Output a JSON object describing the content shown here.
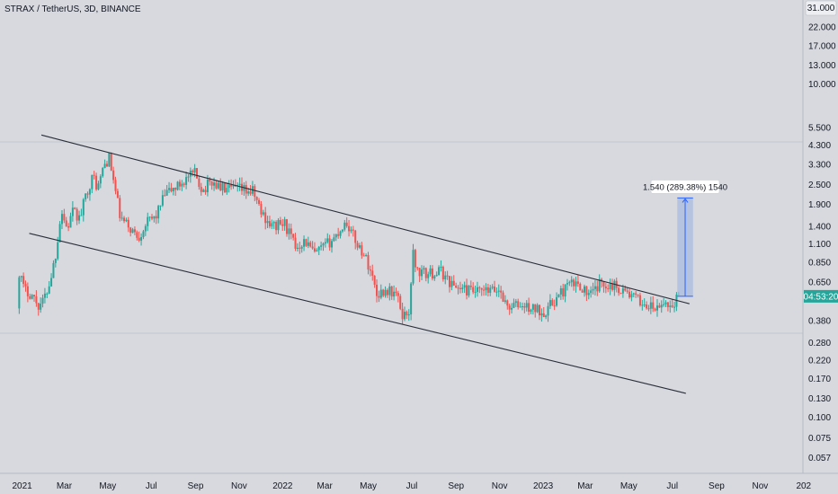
{
  "header": {
    "symbol": "STRAX / TetherUS, 3D, BINANCE",
    "top_right_tick": "31.000"
  },
  "colors": {
    "background": "#d7d9df",
    "up": "#26a69a",
    "down": "#ef5350",
    "channel": "#2a2e39",
    "measure_fill": "#a9b9e0",
    "measure_stroke": "#2962ff",
    "price_tag": "#26a69a"
  },
  "chart_data": {
    "type": "candlestick",
    "title": "STRAX / TetherUS, 3D, BINANCE",
    "y_scale": "log",
    "ylim": [
      0.046,
      32
    ],
    "xlim": [
      "2020-12-01",
      "2023-12-31"
    ],
    "y_ticks": [
      22.0,
      17.0,
      13.0,
      10.0,
      5.5,
      4.3,
      3.3,
      2.5,
      1.9,
      1.4,
      1.1,
      0.85,
      0.65,
      0.38,
      0.28,
      0.22,
      0.17,
      0.13,
      0.1,
      0.075,
      0.057
    ],
    "y_tick_labels": [
      "22.000",
      "17.000",
      "13.000",
      "10.000",
      "5.500",
      "4.300",
      "3.300",
      "2.500",
      "1.900",
      "1.400",
      "1.100",
      "0.850",
      "0.650",
      "0.380",
      "0.280",
      "0.220",
      "0.170",
      "0.130",
      "0.100",
      "0.075",
      "0.057"
    ],
    "x_ticks": [
      {
        "date": "2021-01-01",
        "label": "2021"
      },
      {
        "date": "2021-03-01",
        "label": "Mar"
      },
      {
        "date": "2021-05-01",
        "label": "May"
      },
      {
        "date": "2021-07-01",
        "label": "Jul"
      },
      {
        "date": "2021-09-01",
        "label": "Sep"
      },
      {
        "date": "2021-11-01",
        "label": "Nov"
      },
      {
        "date": "2022-01-01",
        "label": "2022"
      },
      {
        "date": "2022-03-01",
        "label": "Mar"
      },
      {
        "date": "2022-05-01",
        "label": "May"
      },
      {
        "date": "2022-07-01",
        "label": "Jul"
      },
      {
        "date": "2022-09-01",
        "label": "Sep"
      },
      {
        "date": "2022-11-01",
        "label": "Nov"
      },
      {
        "date": "2023-01-01",
        "label": "2023"
      },
      {
        "date": "2023-03-01",
        "label": "Mar"
      },
      {
        "date": "2023-05-01",
        "label": "May"
      },
      {
        "date": "2023-07-01",
        "label": "Jul"
      },
      {
        "date": "2023-09-01",
        "label": "Sep"
      },
      {
        "date": "2023-11-01",
        "label": "Nov"
      },
      {
        "date": "2024-01-01",
        "label": "202"
      }
    ],
    "series_path": [
      [
        "2020-12-26",
        0.45
      ],
      [
        "2020-12-29",
        0.75
      ],
      [
        "2021-01-05",
        0.58
      ],
      [
        "2021-01-15",
        0.55
      ],
      [
        "2021-01-25",
        0.47
      ],
      [
        "2021-02-01",
        0.5
      ],
      [
        "2021-02-10",
        0.65
      ],
      [
        "2021-02-18",
        0.95
      ],
      [
        "2021-02-26",
        1.75
      ],
      [
        "2021-03-06",
        1.35
      ],
      [
        "2021-03-14",
        1.7
      ],
      [
        "2021-03-24",
        1.55
      ],
      [
        "2021-04-03",
        2.3
      ],
      [
        "2021-04-12",
        2.8
      ],
      [
        "2021-04-18",
        2.35
      ],
      [
        "2021-04-26",
        3.2
      ],
      [
        "2021-05-04",
        3.6
      ],
      [
        "2021-05-11",
        2.5
      ],
      [
        "2021-05-20",
        1.55
      ],
      [
        "2021-05-31",
        1.4
      ],
      [
        "2021-06-14",
        1.2
      ],
      [
        "2021-06-24",
        1.45
      ],
      [
        "2021-07-08",
        1.6
      ],
      [
        "2021-07-22",
        2.2
      ],
      [
        "2021-08-06",
        2.4
      ],
      [
        "2021-08-20",
        2.7
      ],
      [
        "2021-09-01",
        2.9
      ],
      [
        "2021-09-12",
        2.3
      ],
      [
        "2021-09-24",
        2.6
      ],
      [
        "2021-10-06",
        2.4
      ],
      [
        "2021-10-18",
        2.3
      ],
      [
        "2021-10-28",
        2.35
      ],
      [
        "2021-11-10",
        2.3
      ],
      [
        "2021-11-22",
        2.25
      ],
      [
        "2021-12-03",
        1.7
      ],
      [
        "2021-12-18",
        1.4
      ],
      [
        "2022-01-05",
        1.45
      ],
      [
        "2022-01-20",
        1.05
      ],
      [
        "2022-02-02",
        1.15
      ],
      [
        "2022-02-16",
        0.95
      ],
      [
        "2022-03-01",
        1.05
      ],
      [
        "2022-03-16",
        1.2
      ],
      [
        "2022-04-01",
        1.5
      ],
      [
        "2022-04-14",
        1.15
      ],
      [
        "2022-04-26",
        0.95
      ],
      [
        "2022-05-06",
        0.75
      ],
      [
        "2022-05-14",
        0.55
      ],
      [
        "2022-05-28",
        0.58
      ],
      [
        "2022-06-10",
        0.55
      ],
      [
        "2022-06-20",
        0.4
      ],
      [
        "2022-06-30",
        0.45
      ],
      [
        "2022-07-03",
        1.05
      ],
      [
        "2022-07-09",
        0.75
      ],
      [
        "2022-07-24",
        0.72
      ],
      [
        "2022-08-12",
        0.75
      ],
      [
        "2022-08-28",
        0.62
      ],
      [
        "2022-09-15",
        0.58
      ],
      [
        "2022-10-02",
        0.56
      ],
      [
        "2022-10-18",
        0.57
      ],
      [
        "2022-11-03",
        0.58
      ],
      [
        "2022-11-12",
        0.46
      ],
      [
        "2022-11-28",
        0.47
      ],
      [
        "2022-12-16",
        0.45
      ],
      [
        "2023-01-04",
        0.43
      ],
      [
        "2023-01-18",
        0.5
      ],
      [
        "2023-02-06",
        0.62
      ],
      [
        "2023-02-22",
        0.63
      ],
      [
        "2023-03-08",
        0.53
      ],
      [
        "2023-03-24",
        0.64
      ],
      [
        "2023-04-10",
        0.62
      ],
      [
        "2023-04-24",
        0.58
      ],
      [
        "2023-05-10",
        0.52
      ],
      [
        "2023-05-26",
        0.47
      ],
      [
        "2023-06-12",
        0.44
      ],
      [
        "2023-06-22",
        0.49
      ],
      [
        "2023-07-02",
        0.46
      ],
      [
        "2023-07-08",
        0.52
      ]
    ],
    "channel_lines": [
      {
        "name": "upper-trendline",
        "start": {
          "date": "2021-01-28",
          "value": 4.95
        },
        "end": {
          "date": "2023-07-25",
          "value": 0.48
        }
      },
      {
        "name": "lower-trendline",
        "start": {
          "date": "2021-01-11",
          "value": 1.27
        },
        "end": {
          "date": "2023-07-20",
          "value": 0.139
        }
      }
    ],
    "price_range_measure": {
      "label": "1.540 (289.38%) 1540",
      "start_date": "2023-07-08",
      "end_date": "2023-07-30",
      "from_value": 0.532,
      "to_value": 2.072
    },
    "last_price_tag": {
      "label": "04:53:20",
      "value": 0.532
    }
  }
}
